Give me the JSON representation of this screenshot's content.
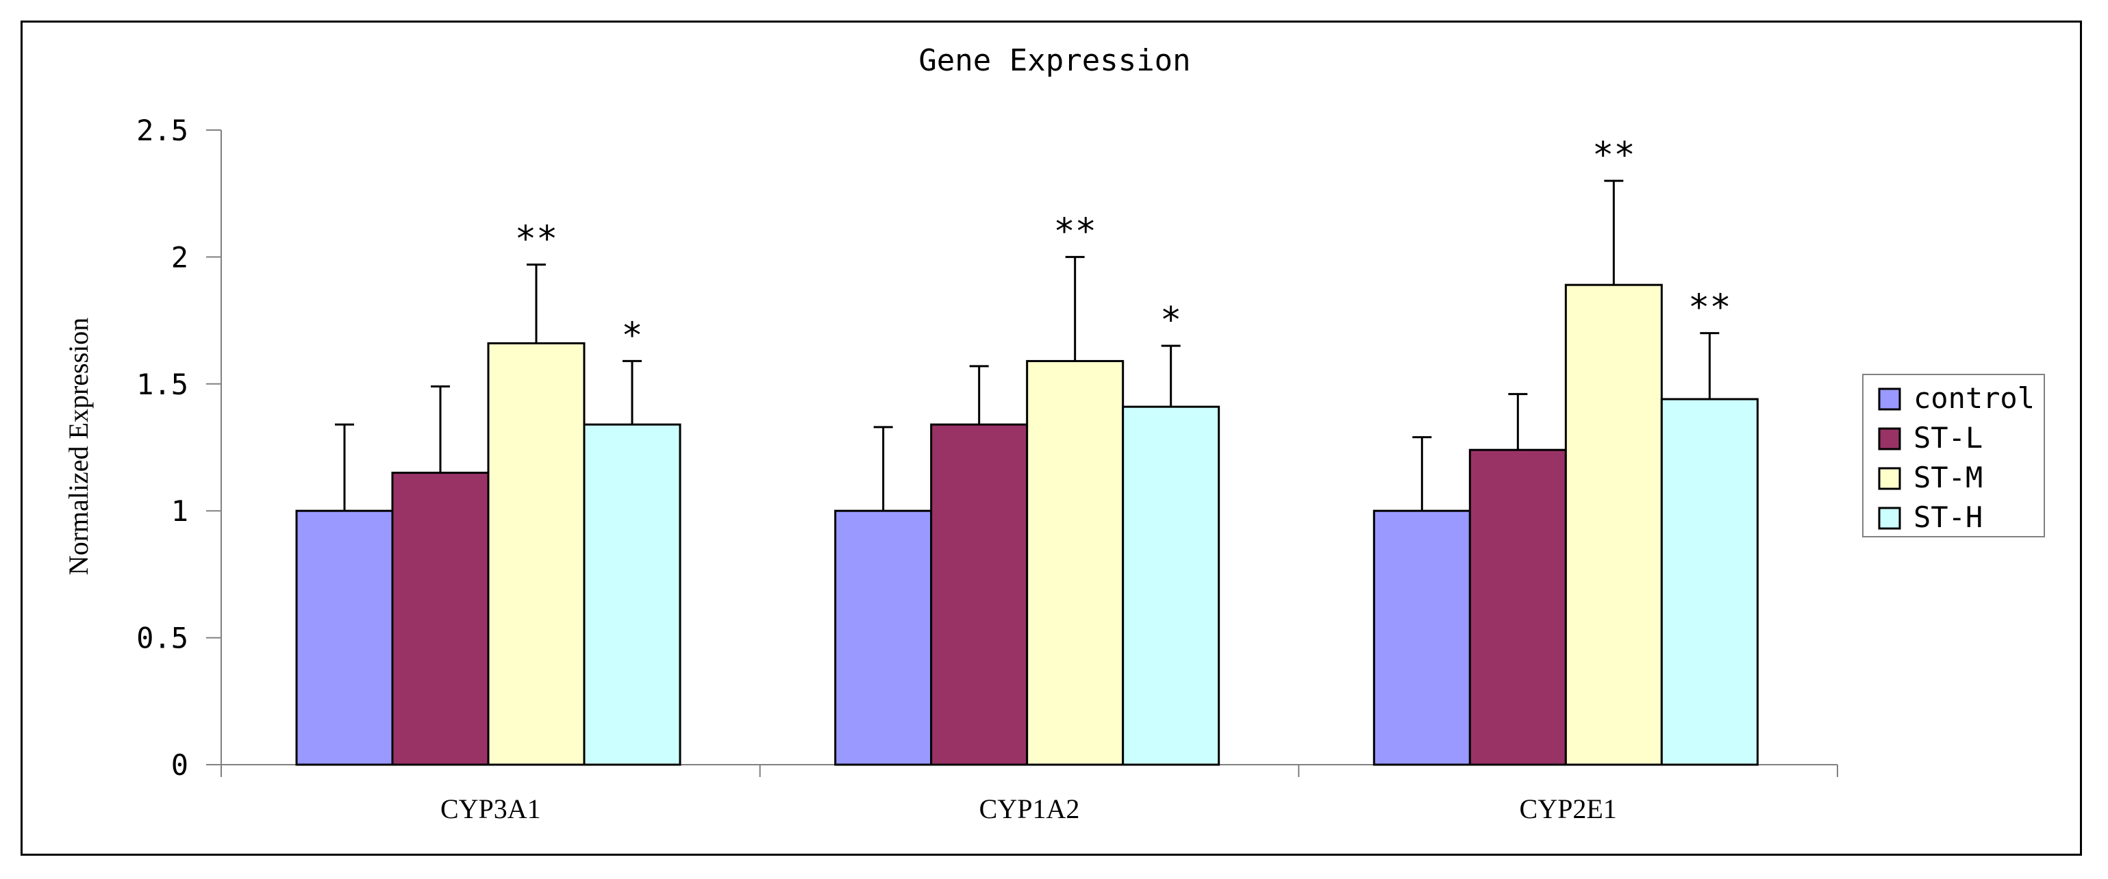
{
  "chart_data": {
    "type": "bar",
    "title": "Gene Expression",
    "ylabel": "Normalized Expression",
    "xlabel": "",
    "categories": [
      "CYP3A1",
      "CYP1A2",
      "CYP2E1"
    ],
    "ylim": [
      0,
      2.5
    ],
    "yticks": [
      0,
      0.5,
      1,
      1.5,
      2,
      2.5
    ],
    "ytick_labels": [
      "0",
      "0.5",
      "1",
      "1.5",
      "2",
      "2.5"
    ],
    "grid": false,
    "legend_position": "right",
    "series": [
      {
        "name": "control",
        "color": "#9999ff",
        "values": [
          1.0,
          1.0,
          1.0
        ],
        "errors": [
          0.34,
          0.33,
          0.29
        ],
        "annotations": [
          "",
          "",
          ""
        ]
      },
      {
        "name": "ST-L",
        "color": "#993366",
        "values": [
          1.15,
          1.34,
          1.24
        ],
        "errors": [
          0.34,
          0.23,
          0.22
        ],
        "annotations": [
          "",
          "",
          ""
        ]
      },
      {
        "name": "ST-M",
        "color": "#ffffcc",
        "values": [
          1.66,
          1.59,
          1.89
        ],
        "errors": [
          0.31,
          0.41,
          0.41
        ],
        "annotations": [
          "**",
          "**",
          "**"
        ]
      },
      {
        "name": "ST-H",
        "color": "#ccffff",
        "values": [
          1.34,
          1.41,
          1.44
        ],
        "errors": [
          0.25,
          0.24,
          0.26
        ],
        "annotations": [
          "*",
          "*",
          "**"
        ]
      }
    ]
  }
}
